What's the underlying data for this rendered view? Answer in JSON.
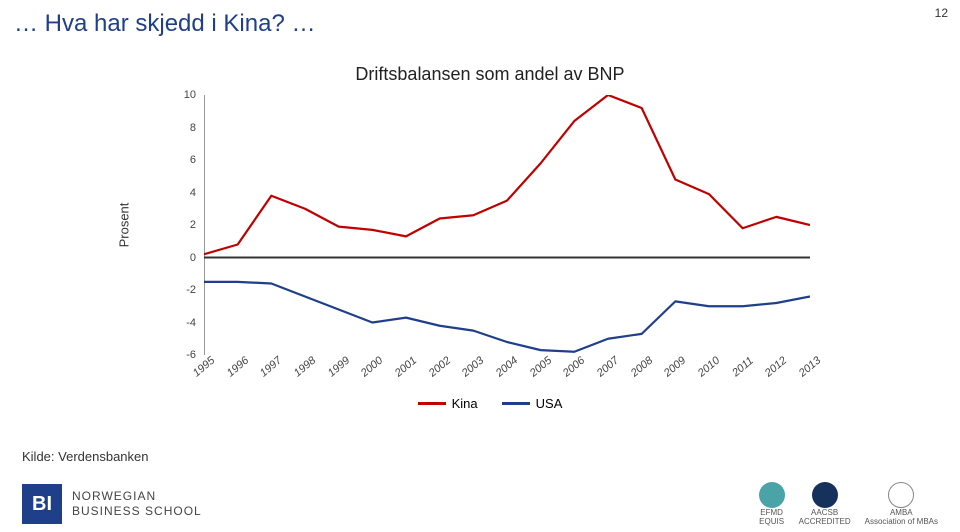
{
  "page_number": "12",
  "title": "… Hva har skjedd i Kina? …",
  "chart": {
    "type": "line",
    "title": "Driftsbalansen som andel av BNP",
    "title_fontsize": 18,
    "y_axis_label": "Prosent",
    "label_fontsize": 13,
    "ylim": [
      -6,
      10
    ],
    "ytick_step": 2,
    "yticks": [
      10,
      8,
      6,
      4,
      2,
      0,
      -2,
      -4,
      -6
    ],
    "xticks": [
      "1995",
      "1996",
      "1997",
      "1998",
      "1999",
      "2000",
      "2001",
      "2002",
      "2003",
      "2004",
      "2005",
      "2006",
      "2007",
      "2008",
      "2009",
      "2010",
      "2011",
      "2012",
      "2013"
    ],
    "tick_fontsize": 11,
    "background_color": "#ffffff",
    "axis_color": "#333333",
    "grid": false,
    "line_width": 2.2,
    "series": [
      {
        "name": "Kina",
        "color": "#c00000",
        "values": [
          0.2,
          0.8,
          3.8,
          3.0,
          1.9,
          1.7,
          1.3,
          2.4,
          2.6,
          3.5,
          5.8,
          8.4,
          10.0,
          9.2,
          4.8,
          3.9,
          1.8,
          2.5,
          2.0
        ]
      },
      {
        "name": "USA",
        "color": "#1f3f8b",
        "values": [
          -1.5,
          -1.5,
          -1.6,
          -2.4,
          -3.2,
          -4.0,
          -3.7,
          -4.2,
          -4.5,
          -5.2,
          -5.7,
          -5.8,
          -5.0,
          -4.7,
          -2.7,
          -3.0,
          -3.0,
          -2.8,
          -2.4
        ]
      }
    ]
  },
  "legend": {
    "items": [
      {
        "label": "Kina",
        "color": "#c00000"
      },
      {
        "label": "USA",
        "color": "#1f3f8b"
      }
    ]
  },
  "source": "Kilde: Verdensbanken",
  "footer": {
    "logo_mark": "BI",
    "logo_name_line1": "NORWEGIAN",
    "logo_name_line2": "BUSINESS SCHOOL",
    "brand_color": "#1f3f8b",
    "accreditations": [
      {
        "short": "EFMD",
        "label": "EQUIS",
        "bg": "#4aa3a7"
      },
      {
        "short": "AACSB",
        "label": "ACCREDITED",
        "bg": "#16325c"
      },
      {
        "short": "AMBA",
        "label": "Association of MBAs",
        "bg": "#ffffff"
      }
    ]
  }
}
